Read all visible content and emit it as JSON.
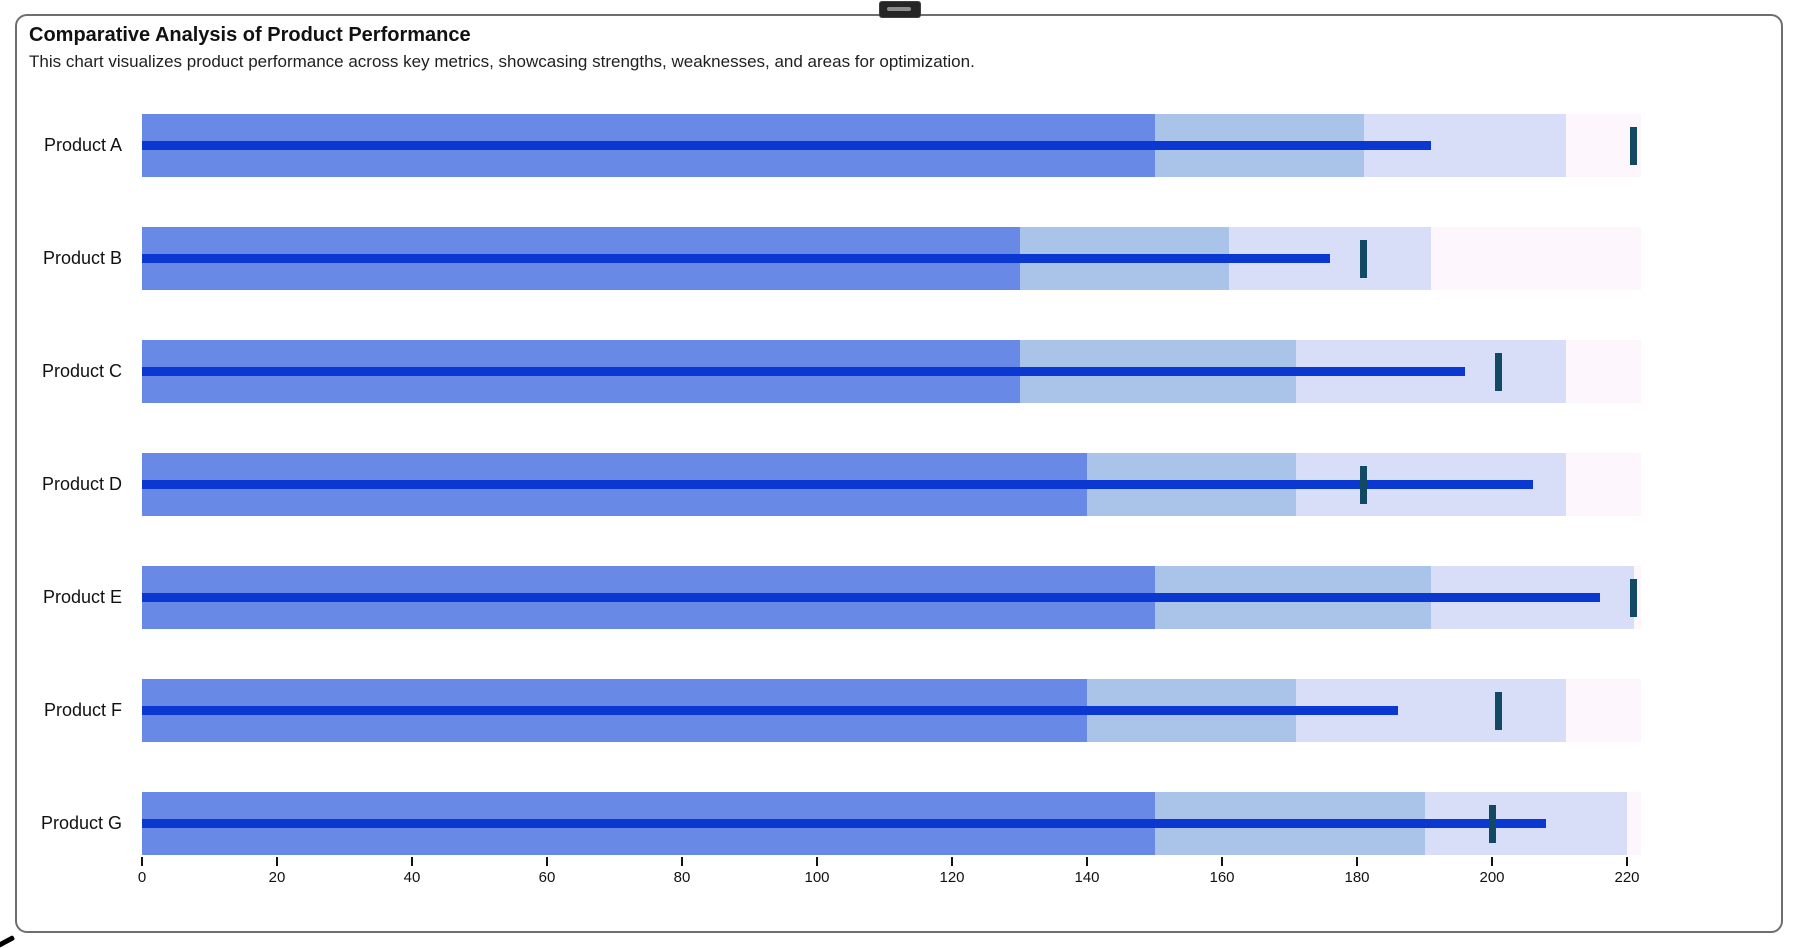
{
  "window": {
    "handle_icon": "window-drag-handle"
  },
  "header": {
    "title": "Comparative Analysis of Product Performance",
    "subtitle": "This chart visualizes product performance across key metrics, showcasing strengths, weaknesses, and areas for optimization."
  },
  "chart_data": {
    "type": "bar",
    "subtype": "bullet",
    "orientation": "horizontal",
    "title": "Comparative Analysis of Product Performance",
    "subtitle": "This chart visualizes product performance across key metrics, showcasing strengths, weaknesses, and areas for optimization.",
    "xlabel": "",
    "ylabel": "",
    "axis": {
      "min": 0,
      "max": 220,
      "tick_step": 20,
      "domain_max": 222,
      "grid": false
    },
    "legend": "none",
    "categories": [
      "Product A",
      "Product B",
      "Product C",
      "Product D",
      "Product E",
      "Product F",
      "Product G"
    ],
    "series": [
      {
        "name": "Product A",
        "ranges": [
          150,
          181,
          211
        ],
        "measure": 191,
        "target": 221
      },
      {
        "name": "Product B",
        "ranges": [
          130,
          161,
          191
        ],
        "measure": 176,
        "target": 181
      },
      {
        "name": "Product C",
        "ranges": [
          130,
          171,
          211
        ],
        "measure": 196,
        "target": 201
      },
      {
        "name": "Product D",
        "ranges": [
          140,
          171,
          211
        ],
        "measure": 206,
        "target": 181
      },
      {
        "name": "Product E",
        "ranges": [
          150,
          191,
          221
        ],
        "measure": 216,
        "target": 221
      },
      {
        "name": "Product F",
        "ranges": [
          140,
          171,
          211
        ],
        "measure": 186,
        "target": 201
      },
      {
        "name": "Product G",
        "ranges": [
          150,
          190,
          220
        ],
        "measure": 208,
        "target": 200
      }
    ],
    "colors": {
      "range_inner": "#6889e6",
      "range_mid": "#aac3e9",
      "range_outer": "#d9def8",
      "track": "#fdf7fd",
      "measure": "#0b38d1",
      "target": "#134a63",
      "axis_text": "#111111"
    }
  }
}
